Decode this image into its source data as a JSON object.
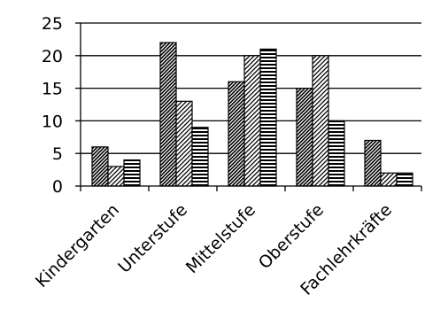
{
  "chart_data": {
    "type": "bar",
    "title": "",
    "xlabel": "",
    "ylabel": "",
    "categories": [
      "Kindergarten",
      "Unterstufe",
      "Mittelstufe",
      "Oberstufe",
      "Fachlehrkräfte"
    ],
    "series": [
      {
        "values": [
          6,
          22,
          16,
          15,
          7
        ],
        "pattern": "diagonal-dense"
      },
      {
        "values": [
          3,
          13,
          20,
          20,
          2
        ],
        "pattern": "diagonal-sparse"
      },
      {
        "values": [
          4,
          9,
          21,
          10,
          2
        ],
        "pattern": "horizontal"
      }
    ],
    "ylim": [
      0,
      25
    ],
    "yticks": [
      "0",
      "5",
      "10",
      "15",
      "20",
      "25"
    ],
    "grid": true,
    "legend": "none"
  }
}
